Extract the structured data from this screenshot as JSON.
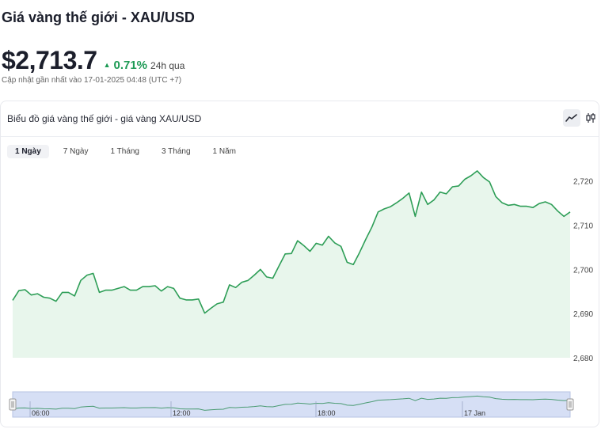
{
  "header": {
    "title": "Giá vàng thế giới - XAU/USD",
    "price": "$2,713.7",
    "change_pct": "0.71%",
    "change_period": "24h qua",
    "updated": "Cập nhật gần nhất vào 17-01-2025 04:48 (UTC +7)"
  },
  "card": {
    "title": "Biểu đồ giá vàng thế giới - giá vàng XAU/USD",
    "chart_buttons": [
      {
        "name": "line-chart-button",
        "icon": "line-chart-icon",
        "active": true
      },
      {
        "name": "candlestick-button",
        "icon": "candlestick-icon",
        "active": false
      }
    ],
    "range_tabs": [
      {
        "label": "1 Ngày",
        "active": true
      },
      {
        "label": "7 Ngày",
        "active": false
      },
      {
        "label": "1 Tháng",
        "active": false
      },
      {
        "label": "3 Tháng",
        "active": false
      },
      {
        "label": "1 Năm",
        "active": false
      }
    ]
  },
  "colors": {
    "line": "#2e9e57",
    "area": "#e8f6ec",
    "navigator_fill": "#d6dff5",
    "navigator_line": "#4a9b72",
    "up": "#1d9a55"
  },
  "chart_data": {
    "type": "area",
    "title": "",
    "xlabel": "",
    "ylabel": "",
    "ylim": [
      2680,
      2723
    ],
    "y_ticks": [
      "2,720",
      "2,710",
      "2,700",
      "2,690",
      "2,680"
    ],
    "y_tick_values": [
      2720,
      2710,
      2700,
      2690,
      2680
    ],
    "navigator_ticks": [
      "06:00",
      "12:00",
      "18:00",
      "17 Jan"
    ],
    "grid": false,
    "legend": "none",
    "series": [
      {
        "values": [
          2693.0,
          2695.2,
          2695.4,
          2694.2,
          2694.5,
          2693.7,
          2693.5,
          2692.8,
          2694.8,
          2694.8,
          2694.0,
          2697.5,
          2698.7,
          2699.1,
          2694.8,
          2695.3,
          2695.3,
          2695.7,
          2696.1,
          2695.3,
          2695.3,
          2696.1,
          2696.1,
          2696.3,
          2695.1,
          2696.1,
          2695.7,
          2693.5,
          2693.1,
          2693.1,
          2693.3,
          2690.1,
          2691.2,
          2692.2,
          2692.6,
          2696.5,
          2695.9,
          2697.1,
          2697.5,
          2698.7,
          2700.0,
          2698.3,
          2698.0,
          2700.8,
          2703.5,
          2703.6,
          2706.5,
          2705.4,
          2704.1,
          2705.9,
          2705.5,
          2707.5,
          2706.0,
          2705.2,
          2701.6,
          2701.1,
          2703.8,
          2706.8,
          2709.6,
          2713.0,
          2713.7,
          2714.2,
          2715.1,
          2716.1,
          2717.3,
          2712.0,
          2717.5,
          2714.7,
          2715.7,
          2717.5,
          2717.1,
          2718.7,
          2718.9,
          2720.4,
          2721.2,
          2722.3,
          2720.8,
          2719.8,
          2716.5,
          2715.1,
          2714.5,
          2714.7,
          2714.3,
          2714.3,
          2714.0,
          2714.9,
          2715.3,
          2714.7,
          2713.2,
          2712.0,
          2713.0
        ]
      }
    ]
  }
}
